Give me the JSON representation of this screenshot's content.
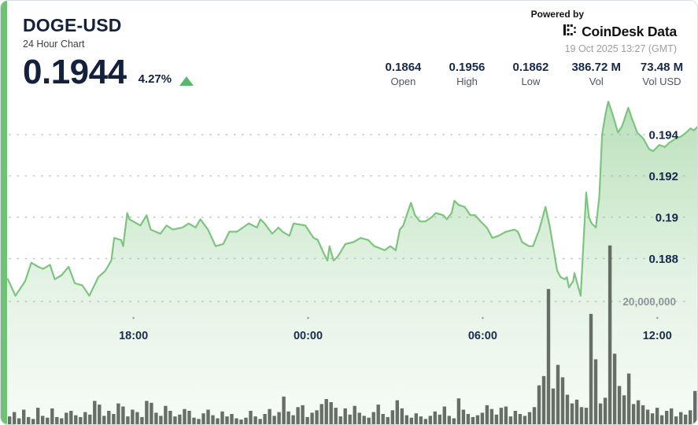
{
  "header": {
    "symbol": "DOGE-USD",
    "subtitle": "24 Hour Chart",
    "price": "0.1944",
    "change_percent": "4.27%",
    "direction_icon": "up-triangle",
    "powered_by": "Powered by",
    "brand": "CoinDesk Data",
    "timestamp": "19 Oct 2025 13:27 (GMT)"
  },
  "stats": [
    {
      "value": "0.1864",
      "label": "Open"
    },
    {
      "value": "0.1956",
      "label": "High"
    },
    {
      "value": "0.1862",
      "label": "Low"
    },
    {
      "value": "386.72 M",
      "label": "Vol"
    },
    {
      "value": "73.48 M",
      "label": "Vol USD"
    }
  ],
  "colors": {
    "accent_green": "#6ec274",
    "line_green": "#7cc57e",
    "triangle_green": "#58b96d",
    "navy_text": "#14213d",
    "gray_text": "#99a0a8",
    "volume_bar": "#5b635a"
  },
  "chart_data": {
    "type": "area",
    "title": "DOGE-USD 24 Hour Chart",
    "legend": "none",
    "grid": "dotted-horizontal",
    "price_axis": {
      "side": "right",
      "ticks": [
        0.194,
        0.192,
        0.19,
        0.188
      ],
      "tick_labels": [
        "0.194",
        "0.192",
        "0.19",
        "0.188"
      ],
      "range_shown": [
        0.186,
        0.196
      ]
    },
    "volume_axis": {
      "tick": 20000000,
      "tick_label": "20,000,000"
    },
    "time_axis": {
      "ticks": [
        {
          "label": "18:00",
          "t": 0.182
        },
        {
          "label": "00:00",
          "t": 0.435
        },
        {
          "label": "06:00",
          "t": 0.688
        },
        {
          "label": "12:00",
          "t": 0.941
        }
      ]
    },
    "price_series": [
      [
        0.0,
        0.187
      ],
      [
        0.011,
        0.1862
      ],
      [
        0.025,
        0.1869
      ],
      [
        0.034,
        0.1878
      ],
      [
        0.044,
        0.1876
      ],
      [
        0.051,
        0.1875
      ],
      [
        0.061,
        0.1877
      ],
      [
        0.068,
        0.187
      ],
      [
        0.078,
        0.1872
      ],
      [
        0.088,
        0.1876
      ],
      [
        0.097,
        0.1868
      ],
      [
        0.108,
        0.1867
      ],
      [
        0.118,
        0.1862
      ],
      [
        0.131,
        0.1871
      ],
      [
        0.141,
        0.1874
      ],
      [
        0.15,
        0.1879
      ],
      [
        0.154,
        0.189
      ],
      [
        0.164,
        0.1889
      ],
      [
        0.167,
        0.1886
      ],
      [
        0.173,
        0.1902
      ],
      [
        0.176,
        0.1899
      ],
      [
        0.192,
        0.1896
      ],
      [
        0.201,
        0.1901
      ],
      [
        0.207,
        0.1894
      ],
      [
        0.221,
        0.1892
      ],
      [
        0.23,
        0.1896
      ],
      [
        0.239,
        0.1894
      ],
      [
        0.253,
        0.1895
      ],
      [
        0.262,
        0.1897
      ],
      [
        0.272,
        0.1895
      ],
      [
        0.279,
        0.1899
      ],
      [
        0.29,
        0.1894
      ],
      [
        0.301,
        0.1886
      ],
      [
        0.312,
        0.1887
      ],
      [
        0.321,
        0.1893
      ],
      [
        0.332,
        0.1893
      ],
      [
        0.349,
        0.1897
      ],
      [
        0.361,
        0.1895
      ],
      [
        0.366,
        0.1899
      ],
      [
        0.372,
        0.1897
      ],
      [
        0.383,
        0.1892
      ],
      [
        0.392,
        0.1895
      ],
      [
        0.398,
        0.1893
      ],
      [
        0.408,
        0.1891
      ],
      [
        0.414,
        0.1897
      ],
      [
        0.431,
        0.1896
      ],
      [
        0.443,
        0.189
      ],
      [
        0.449,
        0.1889
      ],
      [
        0.457,
        0.1883
      ],
      [
        0.463,
        0.1879
      ],
      [
        0.466,
        0.1886
      ],
      [
        0.472,
        0.1879
      ],
      [
        0.478,
        0.1881
      ],
      [
        0.489,
        0.1887
      ],
      [
        0.501,
        0.1888
      ],
      [
        0.511,
        0.189
      ],
      [
        0.522,
        0.1889
      ],
      [
        0.531,
        0.1886
      ],
      [
        0.539,
        0.1885
      ],
      [
        0.546,
        0.1884
      ],
      [
        0.554,
        0.1886
      ],
      [
        0.562,
        0.1884
      ],
      [
        0.568,
        0.1894
      ],
      [
        0.573,
        0.1896
      ],
      [
        0.579,
        0.1902
      ],
      [
        0.584,
        0.1907
      ],
      [
        0.59,
        0.1901
      ],
      [
        0.597,
        0.1898
      ],
      [
        0.605,
        0.1898
      ],
      [
        0.614,
        0.19
      ],
      [
        0.62,
        0.1902
      ],
      [
        0.631,
        0.1901
      ],
      [
        0.636,
        0.1899
      ],
      [
        0.643,
        0.1902
      ],
      [
        0.647,
        0.1908
      ],
      [
        0.653,
        0.1906
      ],
      [
        0.662,
        0.1905
      ],
      [
        0.67,
        0.1901
      ],
      [
        0.677,
        0.1901
      ],
      [
        0.685,
        0.1898
      ],
      [
        0.694,
        0.1895
      ],
      [
        0.702,
        0.189
      ],
      [
        0.711,
        0.1891
      ],
      [
        0.722,
        0.1893
      ],
      [
        0.734,
        0.1894
      ],
      [
        0.739,
        0.1893
      ],
      [
        0.745,
        0.1888
      ],
      [
        0.755,
        0.1886
      ],
      [
        0.761,
        0.1886
      ],
      [
        0.77,
        0.1894
      ],
      [
        0.779,
        0.1905
      ],
      [
        0.785,
        0.1896
      ],
      [
        0.791,
        0.1884
      ],
      [
        0.796,
        0.1874
      ],
      [
        0.801,
        0.1871
      ],
      [
        0.807,
        0.187
      ],
      [
        0.81,
        0.1871
      ],
      [
        0.813,
        0.1866
      ],
      [
        0.819,
        0.1869
      ],
      [
        0.821,
        0.1873
      ],
      [
        0.825,
        0.1868
      ],
      [
        0.83,
        0.1862
      ],
      [
        0.838,
        0.1912
      ],
      [
        0.842,
        0.19
      ],
      [
        0.846,
        0.1897
      ],
      [
        0.852,
        0.1895
      ],
      [
        0.857,
        0.191
      ],
      [
        0.861,
        0.194
      ],
      [
        0.866,
        0.195
      ],
      [
        0.87,
        0.1956
      ],
      [
        0.876,
        0.195
      ],
      [
        0.884,
        0.1941
      ],
      [
        0.89,
        0.1944
      ],
      [
        0.899,
        0.1953
      ],
      [
        0.904,
        0.1948
      ],
      [
        0.912,
        0.1941
      ],
      [
        0.921,
        0.1938
      ],
      [
        0.929,
        0.1933
      ],
      [
        0.935,
        0.1932
      ],
      [
        0.944,
        0.1935
      ],
      [
        0.952,
        0.1934
      ],
      [
        0.958,
        0.1936
      ],
      [
        0.967,
        0.1938
      ],
      [
        0.975,
        0.1939
      ],
      [
        0.983,
        0.1941
      ],
      [
        0.989,
        0.1943
      ],
      [
        0.994,
        0.1942
      ],
      [
        1.0,
        0.1944
      ]
    ],
    "volume_series_millions": [
      1.5,
      2.2,
      1.2,
      2.6,
      1.4,
      1.1,
      2.9,
      1.6,
      1.3,
      2.8,
      1.4,
      1.2,
      2.1,
      2.4,
      1.7,
      1.4,
      2.2,
      1.8,
      4.0,
      3.4,
      1.6,
      2.4,
      1.9,
      3.6,
      3.1,
      1.5,
      2.6,
      2.2,
      1.4,
      4.0,
      3.7,
      2.1,
      1.6,
      3.2,
      2.4,
      1.5,
      1.8,
      2.7,
      2.4,
      1.3,
      1.1,
      2.0,
      2.6,
      1.7,
      1.2,
      2.3,
      1.5,
      1.9,
      1.2,
      1.0,
      1.3,
      2.4,
      1.5,
      1.1,
      1.9,
      2.7,
      1.6,
      2.2,
      4.7,
      2.3,
      1.7,
      3.0,
      3.3,
      1.4,
      2.1,
      2.5,
      3.5,
      4.3,
      3.8,
      2.9,
      1.5,
      2.8,
      1.8,
      3.2,
      2.1,
      1.6,
      1.3,
      2.2,
      3.4,
      1.9,
      1.4,
      2.5,
      4.1,
      2.8,
      1.7,
      1.3,
      2.0,
      1.5,
      1.1,
      1.6,
      2.3,
      1.8,
      3.1,
      1.6,
      1.2,
      4.4,
      2.6,
      1.9,
      1.4,
      1.7,
      2.1,
      3.3,
      2.7,
      1.8,
      2.9,
      3.1,
      1.5,
      2.4,
      1.9,
      1.6,
      2.2,
      3.0,
      6.5,
      8.0,
      22.0,
      6.0,
      9.8,
      7.8,
      5.0,
      3.6,
      4.2,
      3.0,
      2.9,
      18.0,
      10.7,
      3.6,
      4.5,
      29.0,
      11.6,
      6.4,
      4.9,
      8.4,
      3.5,
      4.1,
      3.3,
      2.6,
      2.0,
      2.9,
      1.7,
      2.4,
      2.8,
      1.5,
      2.2,
      1.8,
      2.5,
      5.6
    ]
  }
}
